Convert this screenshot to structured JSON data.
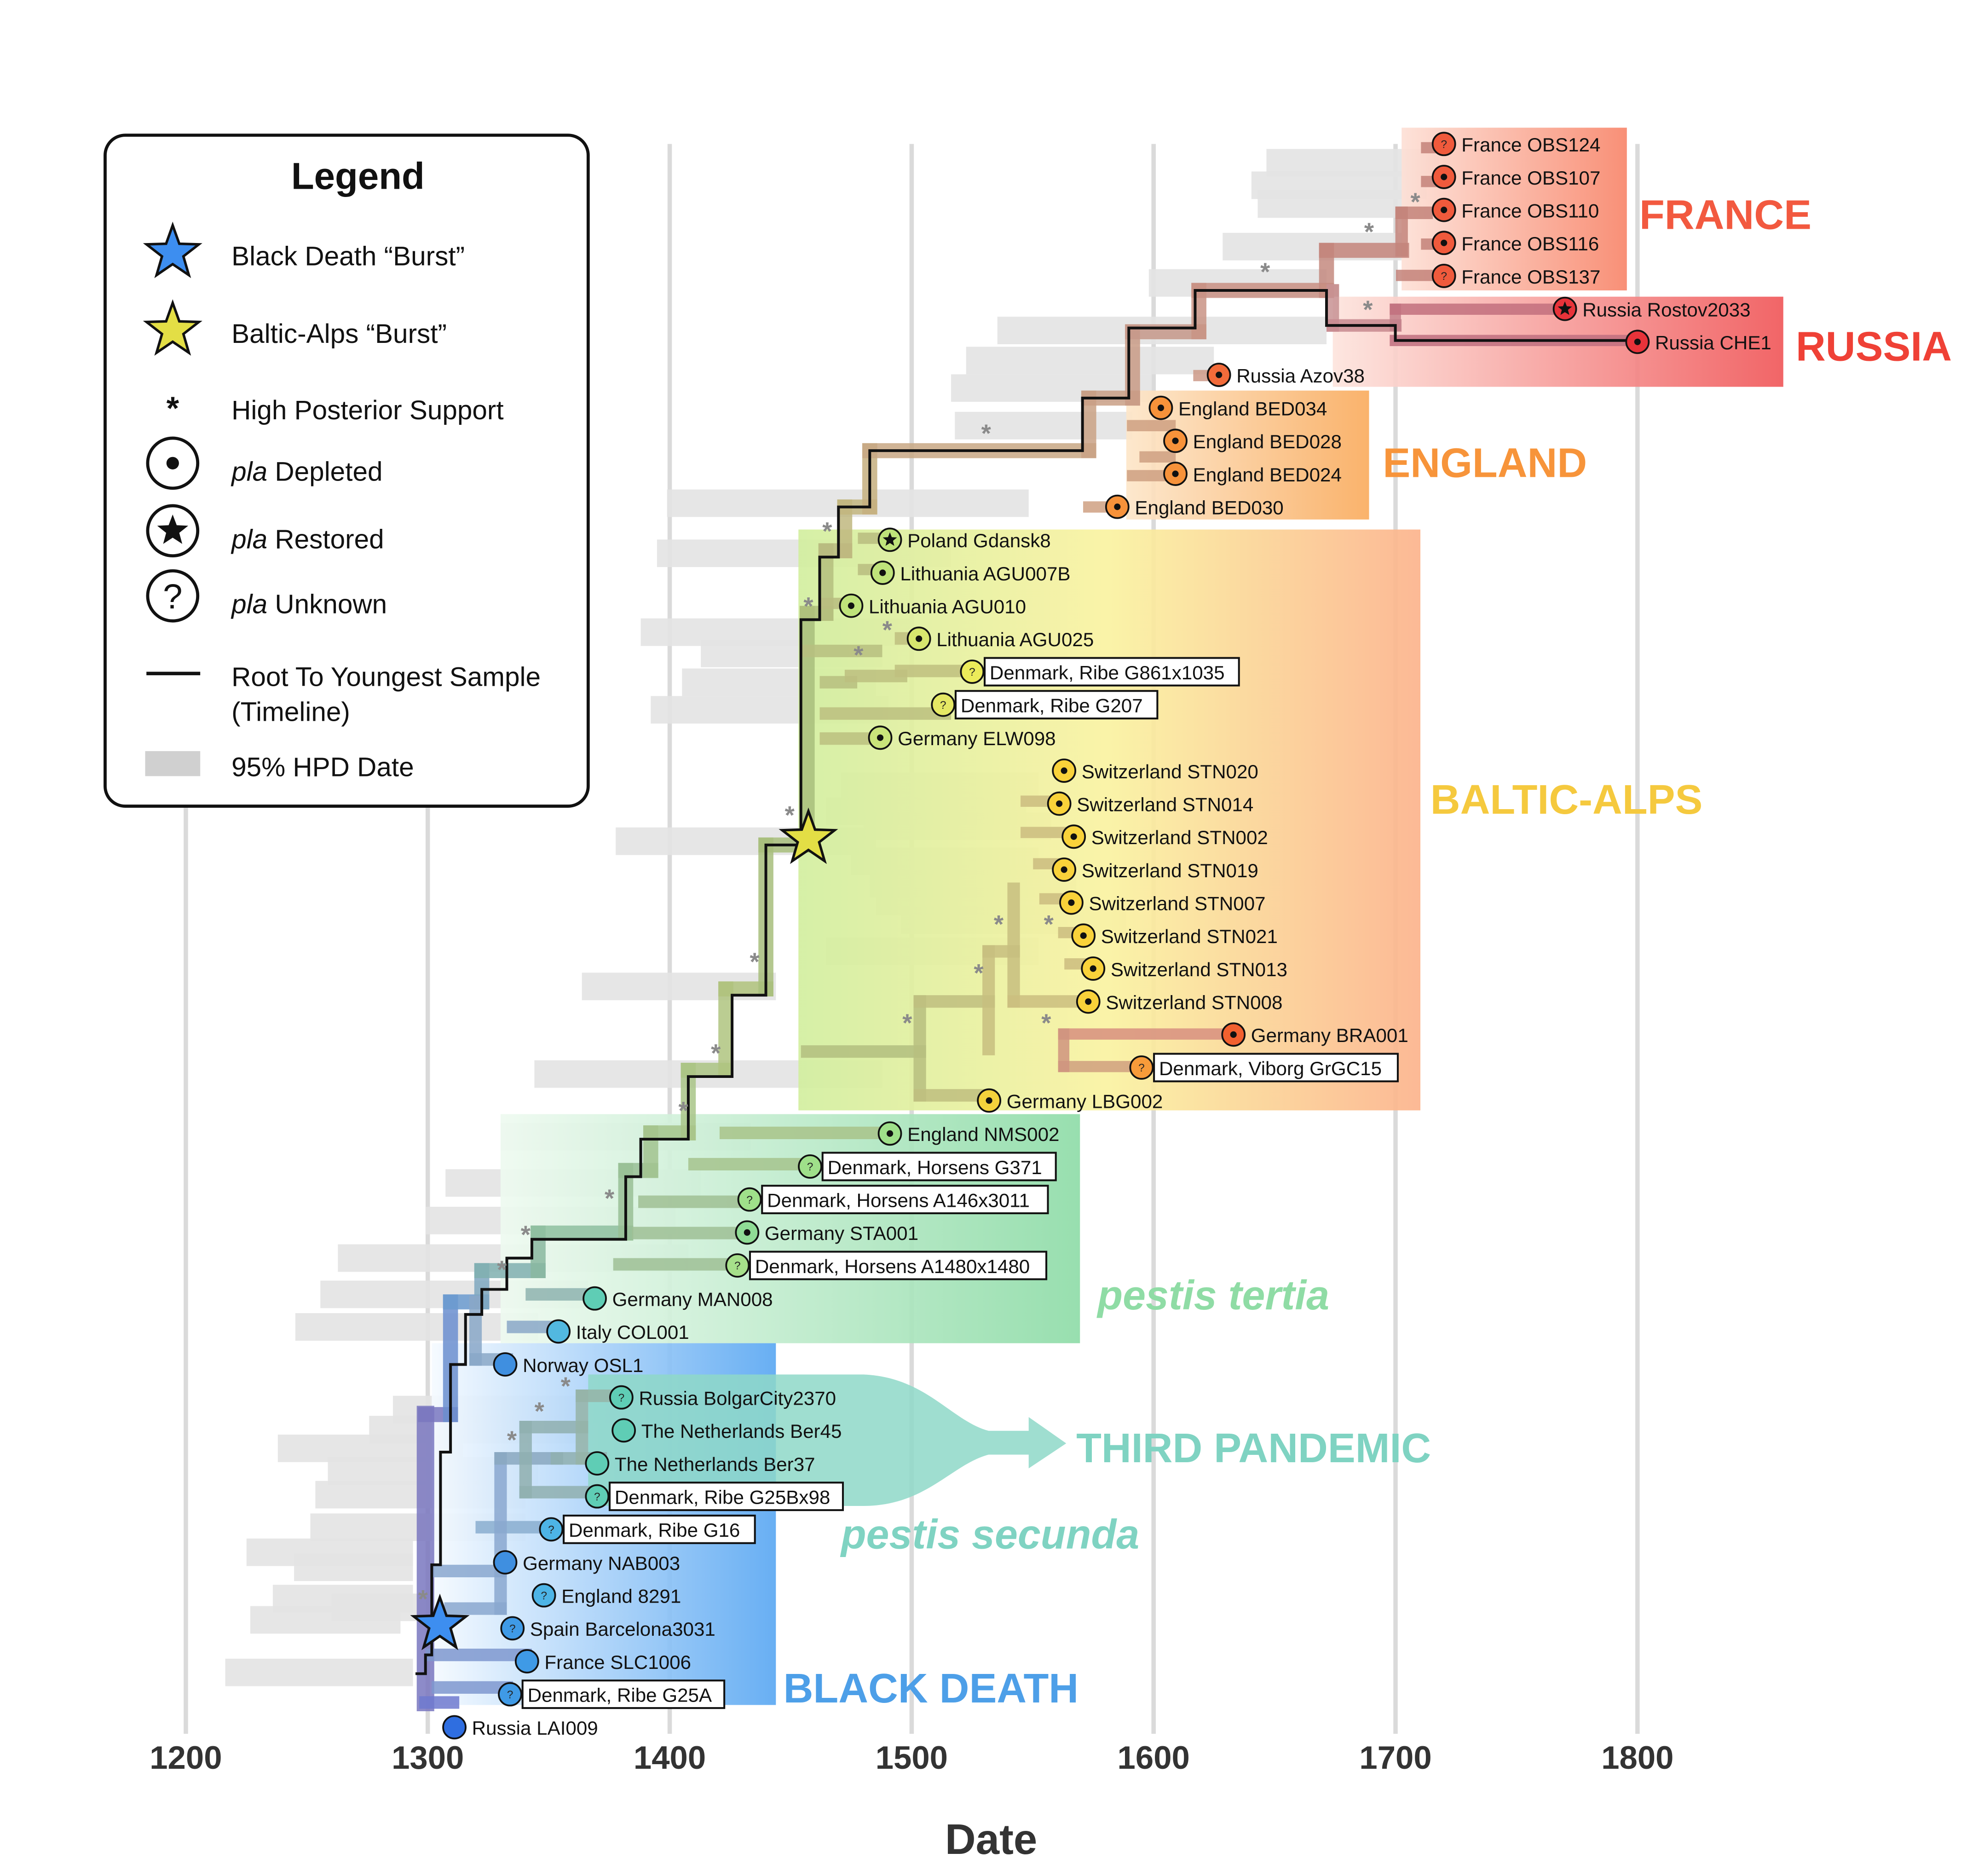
{
  "x_axis": {
    "label": "Date",
    "ticks": [
      "1200",
      "1300",
      "1400",
      "1500",
      "1600",
      "1700",
      "1800"
    ]
  },
  "legend": {
    "title": "Legend",
    "items": [
      {
        "symbol": "blue-star",
        "label": "Black Death “Burst”"
      },
      {
        "symbol": "yellow-star",
        "label": "Baltic-Alps “Burst”"
      },
      {
        "symbol": "asterisk",
        "label": "High Posterior Support"
      },
      {
        "symbol": "dot-circle",
        "italic": "pla",
        "label": " Depleted"
      },
      {
        "symbol": "star-circle",
        "italic": "pla",
        "label": " Restored"
      },
      {
        "symbol": "question-circle",
        "italic": "pla",
        "label": " Unknown"
      },
      {
        "symbol": "line",
        "label": "Root To Youngest Sample",
        "label2": "(Timeline)"
      },
      {
        "symbol": "gray-bar",
        "label": "95% HPD Date"
      }
    ]
  },
  "clades": [
    {
      "id": "france",
      "label": "FRANCE",
      "color": "#f2593f"
    },
    {
      "id": "russia",
      "label": "RUSSIA",
      "color": "#ef4136"
    },
    {
      "id": "england",
      "label": "ENGLAND",
      "color": "#f7943a"
    },
    {
      "id": "baltic_alps",
      "label": "BALTIC-ALPS",
      "color": "#f5c93e"
    },
    {
      "id": "pestis_tertia",
      "label": "pestis tertia",
      "color": "#8fdca5"
    },
    {
      "id": "third_pandemic",
      "label": "THIRD PANDEMIC",
      "color": "#7fd3c2"
    },
    {
      "id": "pestis_secunda",
      "label": "pestis secunda",
      "color": "#7fd3c2"
    },
    {
      "id": "black_death",
      "label": "BLACK DEATH",
      "color": "#4d9fe8"
    }
  ],
  "tips": [
    {
      "label": "France OBS124",
      "date": 1720,
      "pla": "unknown",
      "color": "#f05a3c",
      "boxed": false
    },
    {
      "label": "France OBS107",
      "date": 1720,
      "pla": "depleted",
      "color": "#f05a3c",
      "boxed": false
    },
    {
      "label": "France OBS110",
      "date": 1720,
      "pla": "depleted",
      "color": "#f05a3c",
      "boxed": false
    },
    {
      "label": "France OBS116",
      "date": 1720,
      "pla": "depleted",
      "color": "#f05a3c",
      "boxed": false
    },
    {
      "label": "France OBS137",
      "date": 1720,
      "pla": "unknown",
      "color": "#f05a3c",
      "boxed": false
    },
    {
      "label": "Russia Rostov2033",
      "date": 1770,
      "pla": "restored",
      "color": "#e8333a",
      "boxed": false
    },
    {
      "label": "Russia CHE1",
      "date": 1800,
      "pla": "depleted",
      "color": "#e8333a",
      "boxed": false
    },
    {
      "label": "Russia Azov38",
      "date": 1627,
      "pla": "depleted",
      "color": "#f26b3a",
      "boxed": false
    },
    {
      "label": "England BED034",
      "date": 1603,
      "pla": "depleted",
      "color": "#f7923a",
      "boxed": false
    },
    {
      "label": "England BED028",
      "date": 1609,
      "pla": "depleted",
      "color": "#f7923a",
      "boxed": false
    },
    {
      "label": "England BED024",
      "date": 1609,
      "pla": "depleted",
      "color": "#f7923a",
      "boxed": false
    },
    {
      "label": "England BED030",
      "date": 1585,
      "pla": "depleted",
      "color": "#f7923a",
      "boxed": false
    },
    {
      "label": "Poland Gdansk8",
      "date": 1491,
      "pla": "restored",
      "color": "#bfe37a",
      "boxed": false
    },
    {
      "label": "Lithuania AGU007B",
      "date": 1488,
      "pla": "depleted",
      "color": "#bfe37a",
      "boxed": false
    },
    {
      "label": "Lithuania AGU010",
      "date": 1475,
      "pla": "depleted",
      "color": "#bfe37a",
      "boxed": false
    },
    {
      "label": "Lithuania AGU025",
      "date": 1503,
      "pla": "depleted",
      "color": "#d7e66e",
      "boxed": false
    },
    {
      "label": "Denmark, Ribe G861x1035",
      "date": 1525,
      "pla": "unknown",
      "color": "#eceb5a",
      "boxed": true
    },
    {
      "label": "Denmark, Ribe G207",
      "date": 1513,
      "pla": "unknown",
      "color": "#e5e864",
      "boxed": true
    },
    {
      "label": "Germany ELW098",
      "date": 1487,
      "pla": "depleted",
      "color": "#c9e47a",
      "boxed": false
    },
    {
      "label": "Switzerland STN020",
      "date": 1563,
      "pla": "depleted",
      "color": "#f9d23a",
      "boxed": false
    },
    {
      "label": "Switzerland STN014",
      "date": 1561,
      "pla": "depleted",
      "color": "#f9d23a",
      "boxed": false
    },
    {
      "label": "Switzerland STN002",
      "date": 1567,
      "pla": "depleted",
      "color": "#f9d23a",
      "boxed": false
    },
    {
      "label": "Switzerland STN019",
      "date": 1563,
      "pla": "depleted",
      "color": "#f9d23a",
      "boxed": false
    },
    {
      "label": "Switzerland STN007",
      "date": 1566,
      "pla": "depleted",
      "color": "#f9d23a",
      "boxed": false
    },
    {
      "label": "Switzerland STN021",
      "date": 1571,
      "pla": "depleted",
      "color": "#f9d23a",
      "boxed": false
    },
    {
      "label": "Switzerland STN013",
      "date": 1575,
      "pla": "depleted",
      "color": "#f9d23a",
      "boxed": false
    },
    {
      "label": "Switzerland STN008",
      "date": 1573,
      "pla": "depleted",
      "color": "#f9d23a",
      "boxed": false
    },
    {
      "label": "Germany BRA001",
      "date": 1633,
      "pla": "depleted",
      "color": "#f2602f",
      "boxed": false
    },
    {
      "label": "Denmark, Viborg GrGC15",
      "date": 1595,
      "pla": "unknown",
      "color": "#f79b3a",
      "boxed": true
    },
    {
      "label": "Germany LBG002",
      "date": 1532,
      "pla": "depleted",
      "color": "#f4d23c",
      "boxed": false
    },
    {
      "label": "England NMS002",
      "date": 1491,
      "pla": "depleted",
      "color": "#9fe08a",
      "boxed": false
    },
    {
      "label": "Denmark, Horsens G371",
      "date": 1458,
      "pla": "unknown",
      "color": "#9fe08a",
      "boxed": true
    },
    {
      "label": "Denmark, Horsens A146x3011",
      "date": 1433,
      "pla": "unknown",
      "color": "#9fe08a",
      "boxed": true
    },
    {
      "label": "Germany STA001",
      "date": 1432,
      "pla": "depleted",
      "color": "#8fdc95",
      "boxed": false
    },
    {
      "label": "Denmark, Horsens A1480x1480",
      "date": 1428,
      "pla": "unknown",
      "color": "#a6e08a",
      "boxed": true
    },
    {
      "label": "Germany MAN008",
      "date": 1369,
      "pla": "none",
      "color": "#5fcdb5",
      "boxed": false
    },
    {
      "label": "Italy COL001",
      "date": 1354,
      "pla": "none",
      "color": "#52b8e0",
      "boxed": false
    },
    {
      "label": "Norway OSL1",
      "date": 1332,
      "pla": "none",
      "color": "#3f8fe0",
      "boxed": false
    },
    {
      "label": "Russia BolgarCity2370",
      "date": 1380,
      "pla": "unknown",
      "color": "#5fcdb5",
      "boxed": false
    },
    {
      "label": "The Netherlands Ber45",
      "date": 1381,
      "pla": "none",
      "color": "#5fcdb5",
      "boxed": false
    },
    {
      "label": "The Netherlands Ber37",
      "date": 1370,
      "pla": "none",
      "color": "#5fcdb5",
      "boxed": false
    },
    {
      "label": "Denmark, Ribe G25Bx98",
      "date": 1370,
      "pla": "unknown",
      "color": "#5fcdb5",
      "boxed": true
    },
    {
      "label": "Denmark, Ribe G16",
      "date": 1351,
      "pla": "unknown",
      "color": "#4db4e6",
      "boxed": true
    },
    {
      "label": "Germany NAB003",
      "date": 1332,
      "pla": "none",
      "color": "#3f8fe0",
      "boxed": false
    },
    {
      "label": "England 8291",
      "date": 1348,
      "pla": "unknown",
      "color": "#4db4e6",
      "boxed": false
    },
    {
      "label": "Spain Barcelona3031",
      "date": 1335,
      "pla": "unknown",
      "color": "#3f9ae6",
      "boxed": false
    },
    {
      "label": "France SLC1006",
      "date": 1341,
      "pla": "none",
      "color": "#3f9ae6",
      "boxed": false
    },
    {
      "label": "Denmark, Ribe G25A",
      "date": 1334,
      "pla": "unknown",
      "color": "#3f9ae6",
      "boxed": true
    },
    {
      "label": "Russia LAI009",
      "date": 1311,
      "pla": "none",
      "color": "#2f6ee0",
      "boxed": false
    }
  ]
}
